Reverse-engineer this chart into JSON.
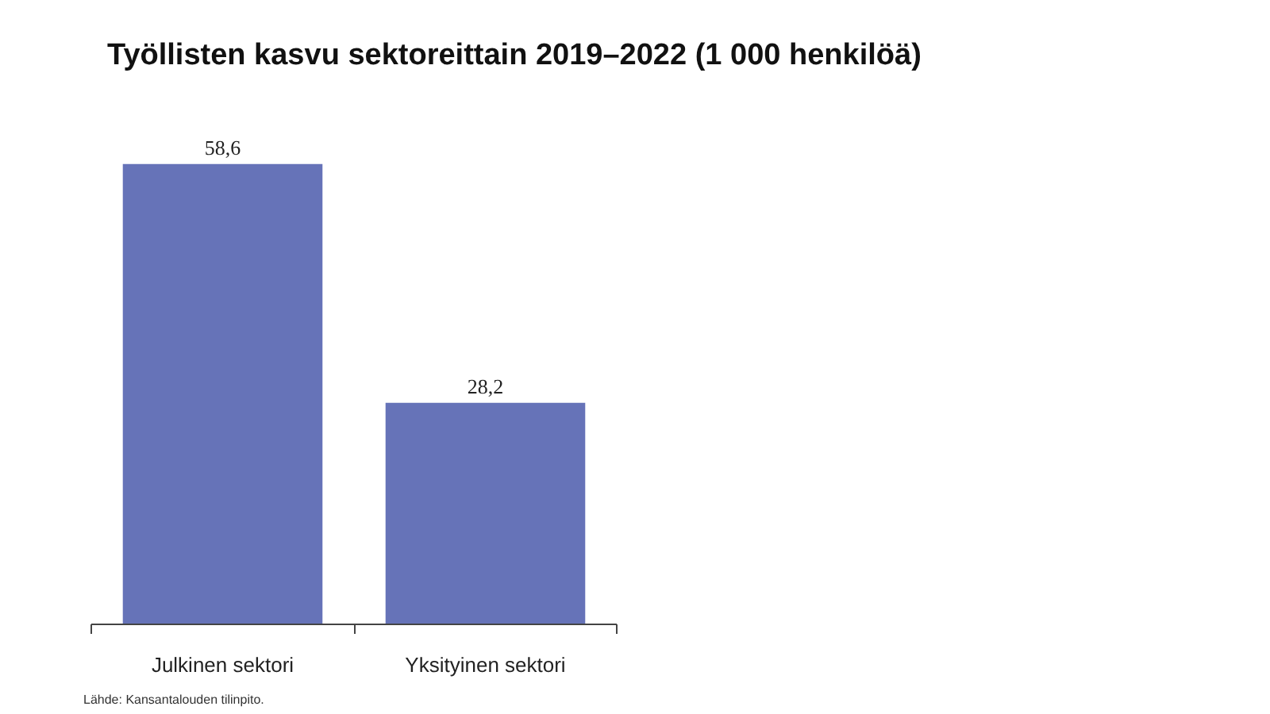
{
  "chart_data": {
    "type": "bar",
    "title": "Työllisten kasvu sektoreittain 2019–2022 (1 000 henkilöä)",
    "categories": [
      "Julkinen sektori",
      "Yksityinen sektori"
    ],
    "values": [
      58.6,
      28.2
    ],
    "value_labels": [
      "58,6",
      "28,2"
    ],
    "color": "#6673b8",
    "grid": false,
    "annotations": [
      "Lähde: Kansantalouden tilinpito."
    ]
  }
}
